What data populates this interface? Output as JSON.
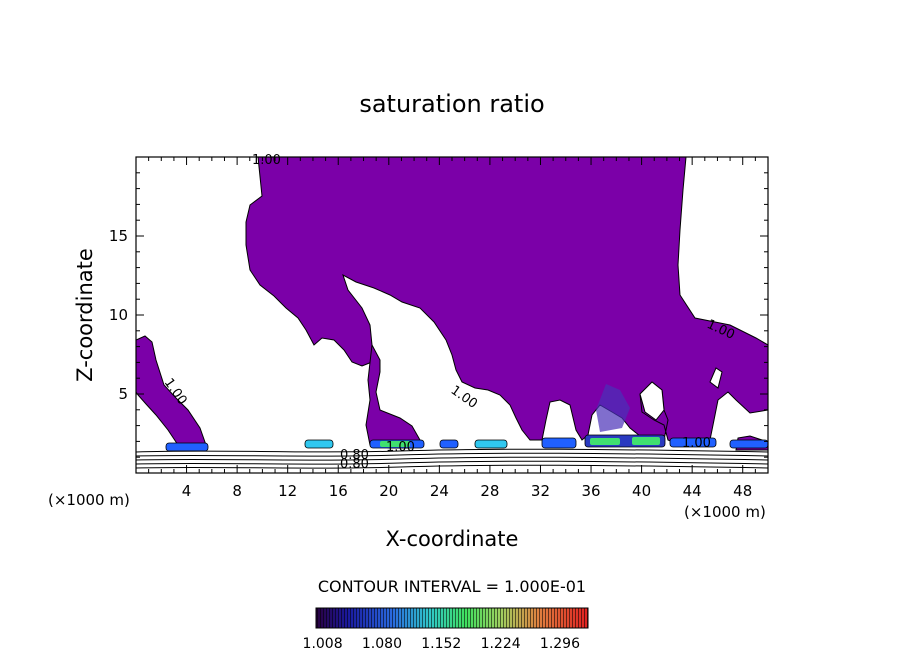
{
  "chart_data": {
    "type": "heatmap",
    "title": "saturation ratio",
    "xlabel": "X-coordinate",
    "ylabel": "Z-coordinate",
    "x_unit": "(×1000 m)",
    "z_unit": "(×1000 m)",
    "xlim": [
      0,
      50
    ],
    "ylim": [
      0,
      20
    ],
    "x_ticks": [
      "4",
      "8",
      "12",
      "16",
      "20",
      "24",
      "28",
      "32",
      "36",
      "40",
      "44",
      "48"
    ],
    "y_ticks": [
      "5",
      "10",
      "15"
    ],
    "contour_interval": "CONTOUR INTERVAL = 1.000E-01",
    "contour_labels": [
      "1.00",
      "1.00",
      "1.00",
      "1.00",
      "1.00",
      "1.00",
      "0.80",
      "0.80"
    ],
    "colorbar": {
      "ticks": [
        "1.008",
        "1.080",
        "1.152",
        "1.224",
        "1.296"
      ],
      "range": [
        1.0,
        1.33
      ]
    },
    "colors": {
      "supersaturated_fill": "#7b00a8",
      "blue_core": "#2060ff",
      "green_core": "#40e070",
      "cyan_core": "#30c8f0"
    }
  }
}
